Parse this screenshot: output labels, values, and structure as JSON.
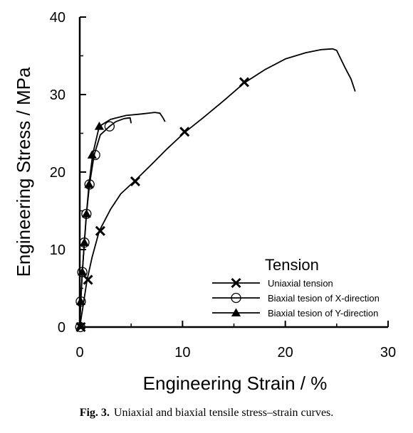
{
  "caption": {
    "label": "Fig. 3.",
    "text": "Uniaxial and biaxial tensile stress–strain curves."
  },
  "chart_data": {
    "type": "line",
    "title": "",
    "xlabel": "Engineering Strain / %",
    "ylabel": "Engineering Stress / MPa",
    "xlim": [
      0,
      30
    ],
    "ylim": [
      0,
      40
    ],
    "x_ticks": [
      0,
      10,
      20,
      30
    ],
    "y_ticks": [
      0,
      10,
      20,
      30,
      40
    ],
    "grid": false,
    "legend": {
      "title": "Tension",
      "placement": "lower-right"
    },
    "series": [
      {
        "name": "Uniaxial tension",
        "marker": "x-mark",
        "color": "#000000",
        "curve": [
          [
            0,
            0
          ],
          [
            0.3,
            2.5
          ],
          [
            0.7,
            6
          ],
          [
            1.2,
            9
          ],
          [
            1.9,
            12.4
          ],
          [
            3,
            15.2
          ],
          [
            4,
            17.2
          ],
          [
            5.3,
            18.8
          ],
          [
            7,
            21
          ],
          [
            8.5,
            23
          ],
          [
            10.2,
            25.1
          ],
          [
            12,
            27
          ],
          [
            14,
            29.2
          ],
          [
            16,
            31.5
          ],
          [
            18,
            33.2
          ],
          [
            20,
            34.6
          ],
          [
            22,
            35.4
          ],
          [
            23.5,
            35.8
          ],
          [
            24.6,
            35.9
          ],
          [
            25,
            35.7
          ],
          [
            25.8,
            33.5
          ],
          [
            26.4,
            32
          ],
          [
            26.8,
            30.4
          ]
        ],
        "markers": [
          [
            0.1,
            0
          ],
          [
            0.8,
            6.1
          ],
          [
            2,
            12.4
          ],
          [
            5.4,
            18.8
          ],
          [
            10.2,
            25.2
          ],
          [
            16,
            31.6
          ]
        ]
      },
      {
        "name": "Biaxial tesion of X-direction",
        "marker": "open-circle",
        "color": "#000000",
        "curve": [
          [
            0,
            0
          ],
          [
            0.1,
            3.3
          ],
          [
            0.25,
            7.1
          ],
          [
            0.45,
            10.9
          ],
          [
            0.65,
            14.6
          ],
          [
            0.95,
            18.4
          ],
          [
            1.4,
            22.2
          ],
          [
            2,
            24.8
          ],
          [
            2.9,
            25.9
          ],
          [
            3.5,
            26.5
          ],
          [
            4.3,
            26.9
          ],
          [
            4.9,
            27
          ],
          [
            5,
            26.3
          ]
        ],
        "markers": [
          [
            0.05,
            0
          ],
          [
            0.1,
            3.3
          ],
          [
            0.25,
            7.1
          ],
          [
            0.45,
            10.9
          ],
          [
            0.65,
            14.6
          ],
          [
            0.95,
            18.4
          ],
          [
            1.5,
            22.2
          ],
          [
            2.9,
            25.9
          ]
        ]
      },
      {
        "name": "Biaxial tesion of Y-direction",
        "marker": "filled-triangle",
        "color": "#000000",
        "curve": [
          [
            0,
            0
          ],
          [
            0.1,
            3.3
          ],
          [
            0.25,
            7
          ],
          [
            0.45,
            11
          ],
          [
            0.65,
            14.6
          ],
          [
            0.9,
            18.4
          ],
          [
            1.25,
            22.2
          ],
          [
            1.9,
            25.9
          ],
          [
            3,
            26.8
          ],
          [
            4.5,
            27.3
          ],
          [
            6,
            27.5
          ],
          [
            7.3,
            27.7
          ],
          [
            7.8,
            27.6
          ],
          [
            8.1,
            27
          ],
          [
            8.3,
            26.5
          ]
        ],
        "markers": [
          [
            0.1,
            0.2
          ],
          [
            0.1,
            3.3
          ],
          [
            0.25,
            7.1
          ],
          [
            0.45,
            10.9
          ],
          [
            0.65,
            14.6
          ],
          [
            0.9,
            18.4
          ],
          [
            1.2,
            22.2
          ],
          [
            1.9,
            25.9
          ]
        ]
      }
    ]
  }
}
